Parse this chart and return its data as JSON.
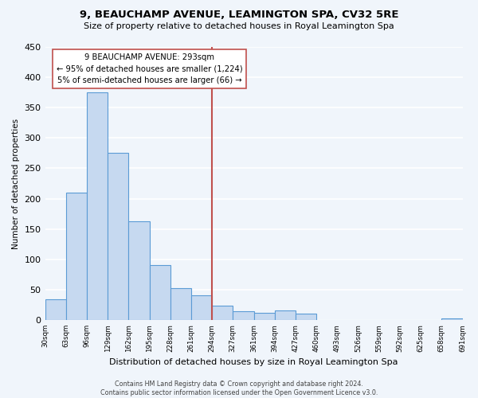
{
  "title": "9, BEAUCHAMP AVENUE, LEAMINGTON SPA, CV32 5RE",
  "subtitle": "Size of property relative to detached houses in Royal Leamington Spa",
  "xlabel": "Distribution of detached houses by size in Royal Leamington Spa",
  "ylabel": "Number of detached properties",
  "bar_values": [
    34,
    210,
    375,
    275,
    162,
    90,
    53,
    41,
    23,
    14,
    12,
    15,
    11,
    0,
    0,
    0,
    0,
    0,
    0,
    2
  ],
  "bin_labels": [
    "30sqm",
    "63sqm",
    "96sqm",
    "129sqm",
    "162sqm",
    "195sqm",
    "228sqm",
    "261sqm",
    "294sqm",
    "327sqm",
    "361sqm",
    "394sqm",
    "427sqm",
    "460sqm",
    "493sqm",
    "526sqm",
    "559sqm",
    "592sqm",
    "625sqm",
    "658sqm",
    "691sqm"
  ],
  "bar_color": "#c6d9f0",
  "bar_edge_color": "#5b9bd5",
  "vline_color": "#c0504d",
  "annotation_text": "9 BEAUCHAMP AVENUE: 293sqm\n← 95% of detached houses are smaller (1,224)\n5% of semi-detached houses are larger (66) →",
  "annotation_box_color": "#ffffff",
  "annotation_box_edge": "#c0504d",
  "ylim": [
    0,
    450
  ],
  "yticks": [
    0,
    50,
    100,
    150,
    200,
    250,
    300,
    350,
    400,
    450
  ],
  "footer": "Contains HM Land Registry data © Crown copyright and database right 2024.\nContains public sector information licensed under the Open Government Licence v3.0.",
  "background_color": "#f0f5fb",
  "grid_color": "#ffffff"
}
